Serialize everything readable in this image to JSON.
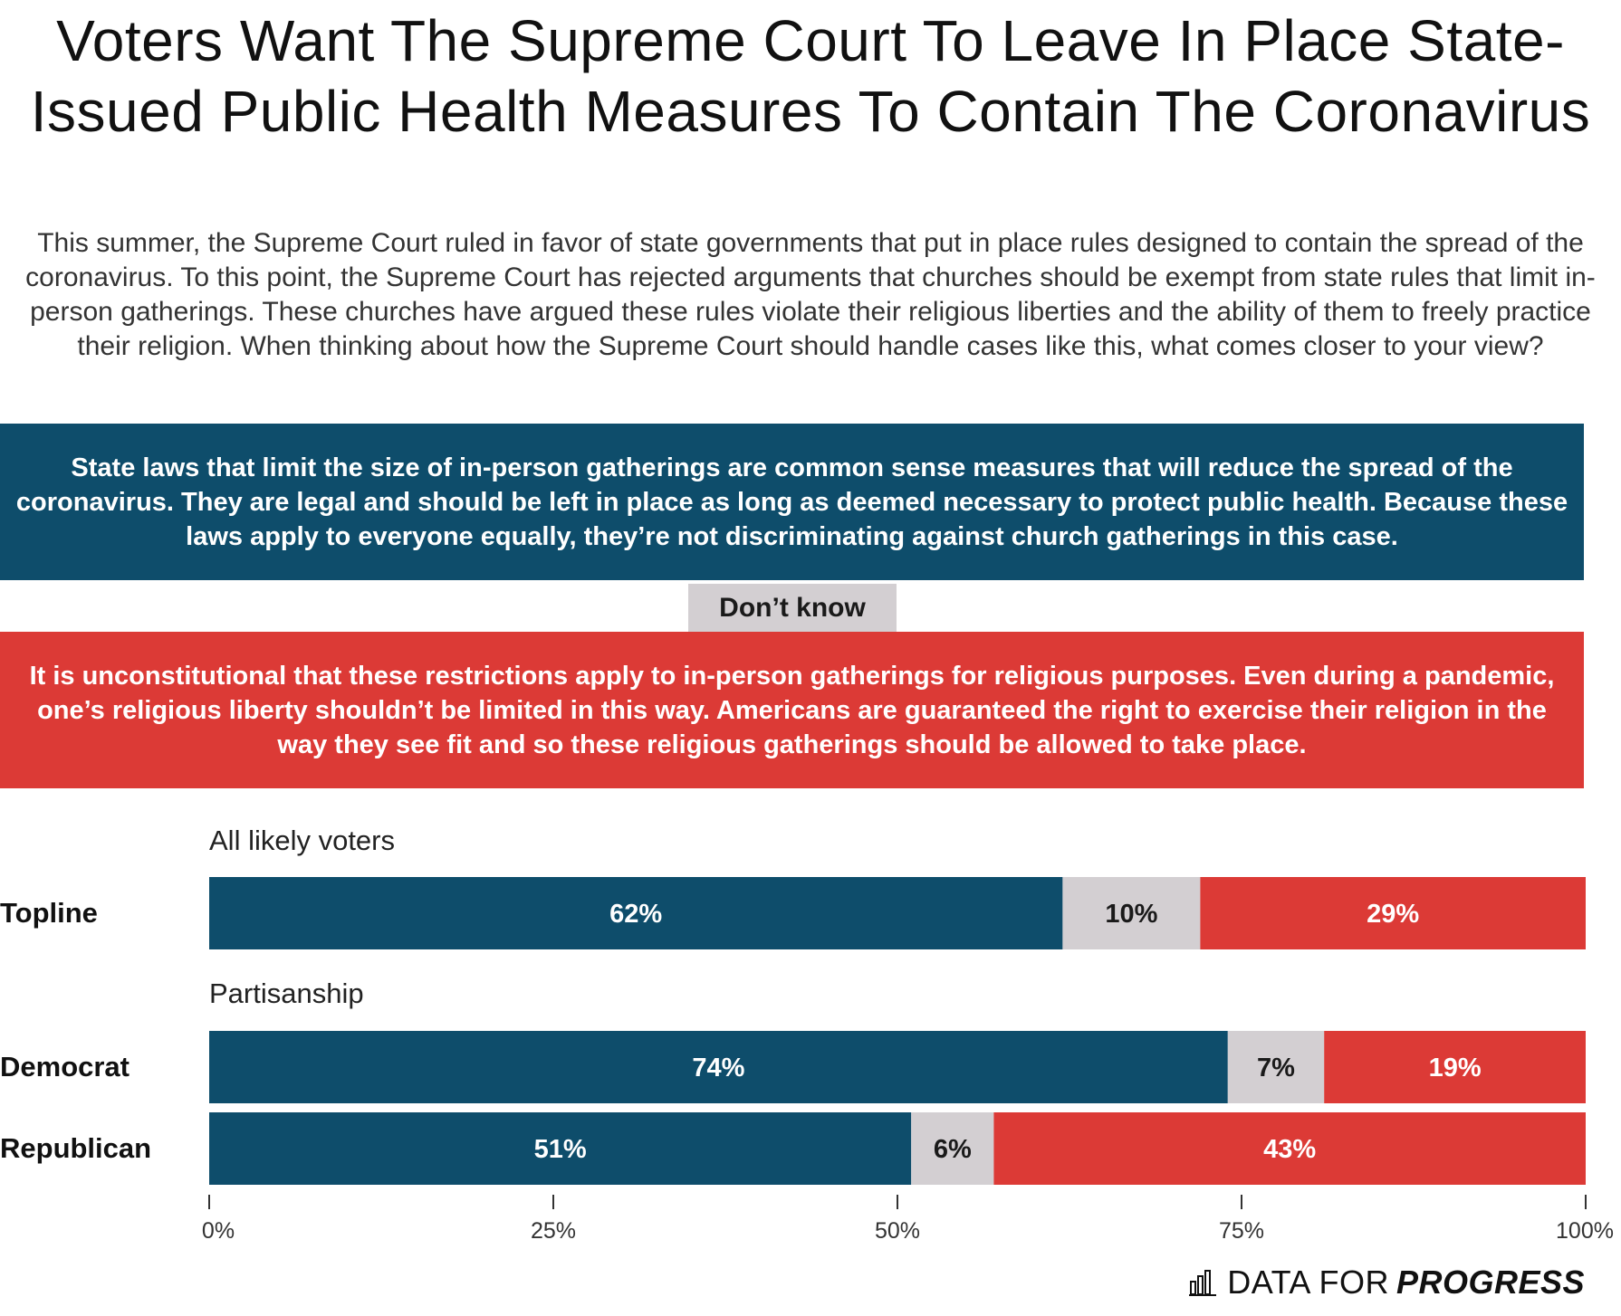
{
  "title": "Voters Want The Supreme Court To Leave In Place State-Issued Public Health Measures To Contain The Coronavirus",
  "subtitle": "This summer, the Supreme Court ruled in favor of state governments that put in place rules designed to contain the spread of the coronavirus. To this point, the Supreme Court has rejected arguments that churches should be exempt from state rules that limit in-person gatherings. These churches have argued these rules violate their religious liberties and the ability of them to freely practice their religion. When thinking about how the Supreme Court should handle cases like this, what comes closer to your view?",
  "responses": {
    "support": "State laws that limit the size of in-person gatherings are common sense measures that will reduce the spread of the coronavirus. They are legal and should be left in place as long as deemed necessary to protect public health. Because these laws apply to everyone equally, they’re not discriminating against church gatherings in this case.",
    "dont_know": "Don’t know",
    "oppose": "It is unconstitutional that these restrictions apply to in-person gatherings for religious purposes. Even during a pandemic, one’s religious liberty shouldn’t be limited in this way. Americans are guaranteed the right to exercise their religion in the way they see fit and so these religious gatherings should be allowed to take place."
  },
  "groups": {
    "all": "All likely voters",
    "partisanship": "Partisanship"
  },
  "colors": {
    "support": "#0e4d6b",
    "dont_know": "#d3cfd2",
    "oppose": "#dc3a36"
  },
  "chart_data": {
    "type": "bar",
    "orientation": "horizontal",
    "stacked": true,
    "categories": [
      "Topline",
      "Democrat",
      "Republican"
    ],
    "series": [
      {
        "name": "State Laws that limit gatherings are common sense",
        "values": [
          62,
          74,
          51
        ]
      },
      {
        "name": "Don’t know",
        "values": [
          10,
          7,
          6
        ]
      },
      {
        "name": "It is unconstitutional",
        "values": [
          29,
          19,
          43
        ]
      }
    ],
    "xlim": [
      0,
      100
    ],
    "xticks": [
      0,
      25,
      50,
      75,
      100
    ],
    "xtick_labels": [
      "0%",
      "25%",
      "50%",
      "75%",
      "100%"
    ],
    "grid": false
  },
  "footer": {
    "brand_light": "DATA FOR",
    "brand_strong": "PROGRESS"
  }
}
